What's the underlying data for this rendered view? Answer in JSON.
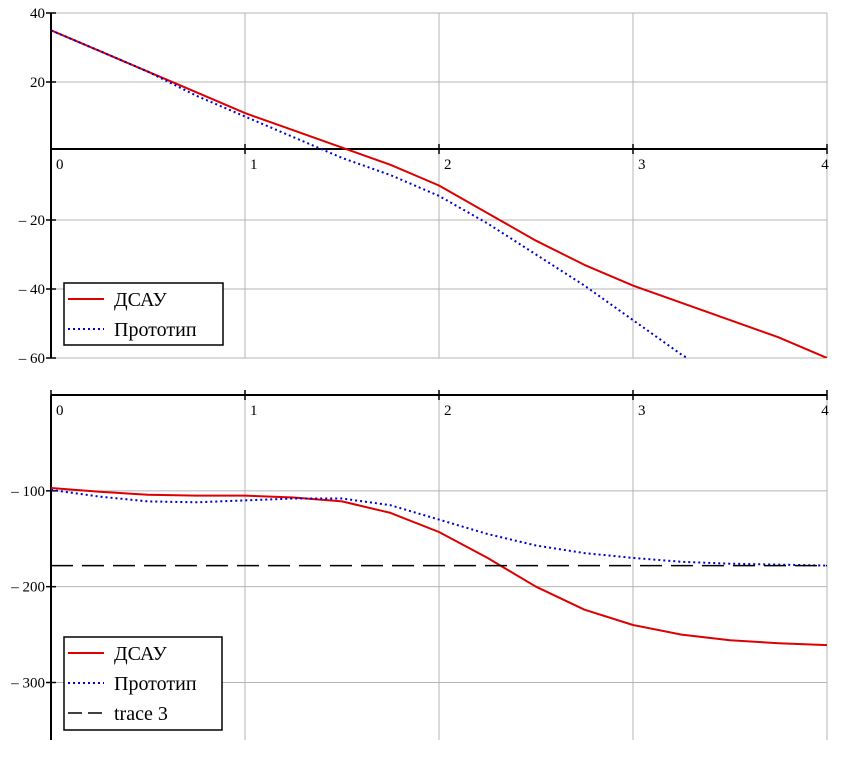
{
  "chart_data": [
    {
      "type": "line",
      "xlim": [
        0,
        4
      ],
      "ylim": [
        -60,
        40
      ],
      "x_ticks": [
        "0",
        "1",
        "2",
        "3",
        "4"
      ],
      "y_ticks": [
        {
          "value": 40,
          "label": "40"
        },
        {
          "value": 20,
          "label": "20"
        },
        {
          "value": -20,
          "label": "– 20"
        },
        {
          "value": -40,
          "label": "– 40"
        },
        {
          "value": -60,
          "label": "– 60"
        }
      ],
      "grid": true,
      "legend_position": "bottom-left",
      "series": [
        {
          "name": "ДСАУ",
          "color": "#dd0000",
          "style": "solid",
          "x": [
            0,
            0.25,
            0.5,
            0.75,
            1.0,
            1.25,
            1.5,
            1.75,
            2.0,
            2.25,
            2.5,
            2.75,
            3.0,
            3.25,
            3.5,
            3.75,
            4.0
          ],
          "y": [
            35,
            29,
            23,
            17,
            11,
            6,
            1,
            -4,
            -10,
            -18,
            -26,
            -33,
            -39,
            -44,
            -49,
            -54,
            -60
          ]
        },
        {
          "name": "Прототип",
          "color": "#0000cc",
          "style": "dotted",
          "x": [
            0,
            0.25,
            0.5,
            0.75,
            1.0,
            1.25,
            1.5,
            1.75,
            2.0,
            2.25,
            2.5,
            2.75,
            3.0,
            3.25,
            3.28
          ],
          "y": [
            35,
            29,
            23,
            16,
            10,
            4,
            -2,
            -7,
            -13,
            -21,
            -30,
            -39,
            -49,
            -59,
            -60
          ]
        }
      ]
    },
    {
      "type": "line",
      "xlim": [
        0,
        4
      ],
      "ylim": [
        -360,
        0
      ],
      "x_ticks": [
        "0",
        "1",
        "2",
        "3",
        "4"
      ],
      "y_ticks": [
        {
          "value": -100,
          "label": "– 100"
        },
        {
          "value": -200,
          "label": "– 200"
        },
        {
          "value": -300,
          "label": "– 300"
        }
      ],
      "grid": true,
      "legend_position": "bottom-left",
      "series": [
        {
          "name": "ДСАУ",
          "color": "#dd0000",
          "style": "solid",
          "x": [
            0,
            0.25,
            0.5,
            0.75,
            1.0,
            1.25,
            1.5,
            1.75,
            2.0,
            2.25,
            2.5,
            2.75,
            3.0,
            3.25,
            3.5,
            3.75,
            4.0
          ],
          "y": [
            -97,
            -101,
            -104,
            -105,
            -105,
            -107,
            -111,
            -123,
            -143,
            -170,
            -200,
            -224,
            -240,
            -250,
            -256,
            -259,
            -261
          ]
        },
        {
          "name": "Прототип",
          "color": "#0000cc",
          "style": "dotted",
          "x": [
            0,
            0.25,
            0.5,
            0.75,
            1.0,
            1.25,
            1.5,
            1.75,
            2.0,
            2.25,
            2.5,
            2.75,
            3.0,
            3.25,
            3.5,
            3.75,
            4.0
          ],
          "y": [
            -99,
            -106,
            -111,
            -112,
            -110,
            -108,
            -108,
            -115,
            -130,
            -145,
            -157,
            -165,
            -170,
            -174,
            -176,
            -177,
            -178
          ]
        },
        {
          "name": "trace 3",
          "color": "#000000",
          "style": "dashed",
          "x": [
            0,
            4
          ],
          "y": [
            -178,
            -178
          ]
        }
      ]
    }
  ]
}
